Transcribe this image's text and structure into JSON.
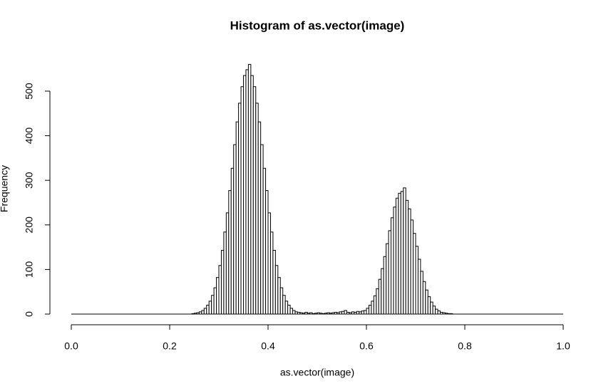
{
  "chart_data": {
    "type": "histogram",
    "title": "Histogram of as.vector(image)",
    "x_label": "as.vector(image)",
    "y_label": "Frequency",
    "bins": [
      0,
      0.005,
      0.01,
      0.015,
      0.02,
      0.025,
      0.03,
      0.035,
      0.04,
      0.045,
      0.05,
      0.055,
      0.06,
      0.065,
      0.07,
      0.075,
      0.08,
      0.085,
      0.09,
      0.095,
      0.1,
      0.105,
      0.11,
      0.115,
      0.12,
      0.125,
      0.13,
      0.135,
      0.14,
      0.145,
      0.15,
      0.155,
      0.16,
      0.165,
      0.17,
      0.175,
      0.18,
      0.185,
      0.19,
      0.195,
      0.2,
      0.205,
      0.21,
      0.215,
      0.22,
      0.225,
      0.23,
      0.235,
      0.24,
      0.245,
      0.25,
      0.255,
      0.26,
      0.265,
      0.27,
      0.275,
      0.28,
      0.285,
      0.29,
      0.295,
      0.3,
      0.305,
      0.31,
      0.315,
      0.32,
      0.325,
      0.33,
      0.335,
      0.34,
      0.345,
      0.35,
      0.355,
      0.36,
      0.365,
      0.37,
      0.375,
      0.38,
      0.385,
      0.39,
      0.395,
      0.4,
      0.405,
      0.41,
      0.415,
      0.42,
      0.425,
      0.43,
      0.435,
      0.44,
      0.445,
      0.45,
      0.455,
      0.46,
      0.465,
      0.47,
      0.475,
      0.48,
      0.485,
      0.49,
      0.495,
      0.5,
      0.505,
      0.51,
      0.515,
      0.52,
      0.525,
      0.53,
      0.535,
      0.54,
      0.545,
      0.55,
      0.555,
      0.56,
      0.565,
      0.57,
      0.575,
      0.58,
      0.585,
      0.59,
      0.595,
      0.6,
      0.605,
      0.61,
      0.615,
      0.62,
      0.625,
      0.63,
      0.635,
      0.64,
      0.645,
      0.65,
      0.655,
      0.66,
      0.665,
      0.67,
      0.675,
      0.68,
      0.685,
      0.69,
      0.695,
      0.7,
      0.705,
      0.71,
      0.715,
      0.72,
      0.725,
      0.73,
      0.735,
      0.74,
      0.745,
      0.75,
      0.755,
      0.76,
      0.765,
      0.77,
      0.775,
      0.78,
      0.785,
      0.79,
      0.795,
      0.8,
      0.805,
      0.81,
      0.815,
      0.82,
      0.825,
      0.83,
      0.835,
      0.84,
      0.845,
      0.85,
      0.855,
      0.86,
      0.865,
      0.87,
      0.875,
      0.88,
      0.885,
      0.89,
      0.895,
      0.9,
      0.905,
      0.91,
      0.915,
      0.92,
      0.925,
      0.93,
      0.935,
      0.94,
      0.945,
      0.95,
      0.955,
      0.96,
      0.965,
      0.97,
      0.975,
      0.98,
      0.985,
      0.99,
      0.995,
      1
    ],
    "values": [
      0,
      0,
      0,
      0,
      0,
      0,
      0,
      0,
      0,
      0,
      0,
      0,
      0,
      0,
      0,
      0,
      0,
      0,
      0,
      0,
      0,
      0,
      0,
      0,
      0,
      0,
      0,
      0,
      0,
      0,
      0,
      0,
      0,
      0,
      0,
      0,
      0,
      0,
      0,
      0,
      0,
      0,
      0,
      0,
      0,
      0,
      0,
      0,
      0,
      1,
      2,
      3,
      5,
      8,
      13,
      20,
      29,
      42,
      59,
      82,
      109,
      143,
      184,
      227,
      277,
      327,
      380,
      431,
      473,
      510,
      535,
      548,
      560,
      535,
      510,
      473,
      431,
      380,
      327,
      277,
      227,
      184,
      143,
      109,
      82,
      59,
      42,
      29,
      20,
      13,
      8,
      5,
      4,
      3,
      2,
      4,
      2,
      3,
      1,
      2,
      3,
      2,
      1,
      2,
      3,
      2,
      3,
      4,
      3,
      5,
      6,
      8,
      4,
      3,
      5,
      4,
      6,
      5,
      7,
      8,
      13,
      20,
      29,
      41,
      57,
      78,
      102,
      129,
      158,
      187,
      216,
      240,
      260,
      271,
      275,
      283,
      255,
      236,
      211,
      181,
      152,
      123,
      96,
      73,
      54,
      39,
      27,
      18,
      11,
      7,
      4,
      3,
      2,
      1,
      1,
      0,
      0,
      0,
      0,
      0,
      0,
      0,
      0,
      0,
      0,
      0,
      0,
      0,
      0,
      0,
      0,
      0,
      0,
      0,
      0,
      0,
      0,
      0,
      0,
      0,
      0,
      0,
      0,
      0,
      0,
      0,
      0,
      0,
      0,
      0,
      0,
      0,
      0,
      0,
      0,
      0,
      0,
      0,
      0,
      0
    ],
    "fill": "#ffffff",
    "edgecolor": "#000000",
    "xlim": [
      0,
      1
    ],
    "xticks": [
      {
        "value": 0,
        "label": "0.0"
      },
      {
        "value": 0.2,
        "label": "0.2"
      },
      {
        "value": 0.4,
        "label": "0.4"
      },
      {
        "value": 0.6,
        "label": "0.6"
      },
      {
        "value": 0.8,
        "label": "0.8"
      },
      {
        "value": 1,
        "label": "1.0"
      }
    ],
    "ylim": [
      0,
      560
    ],
    "yticks": [
      0,
      100,
      200,
      300,
      400,
      500
    ]
  }
}
